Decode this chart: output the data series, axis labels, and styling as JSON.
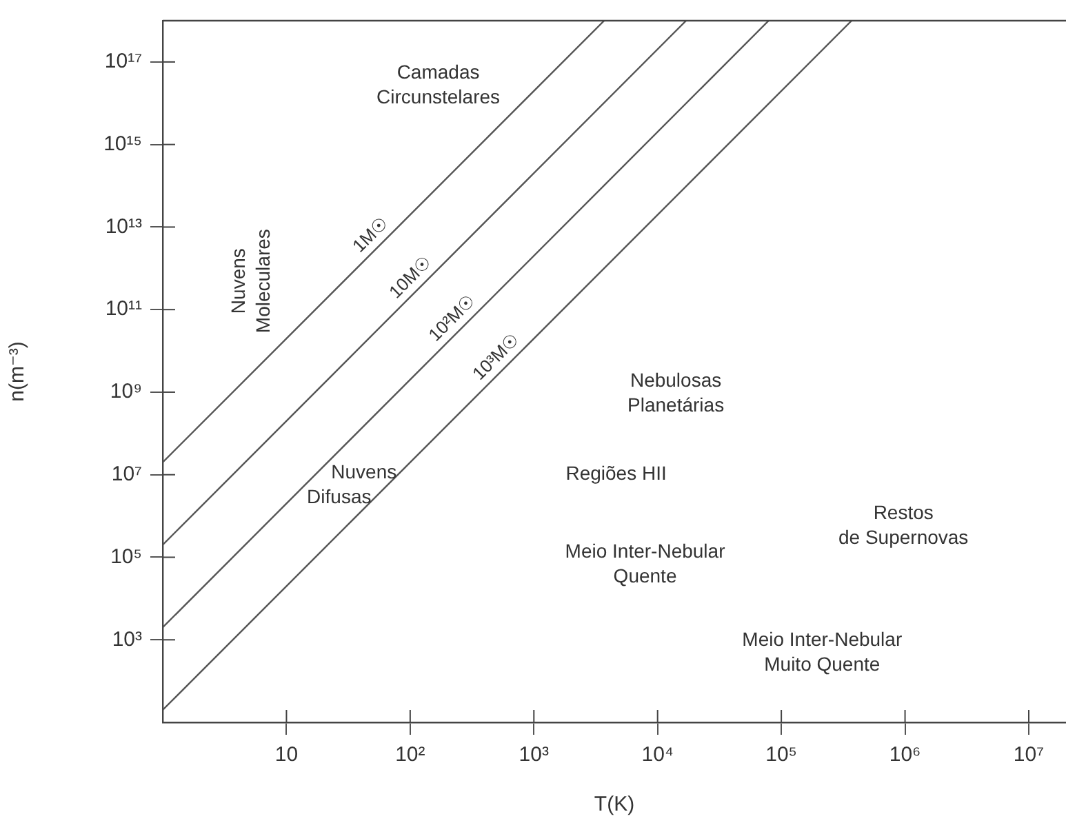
{
  "chart_data": {
    "type": "line",
    "xlabel": "T(K)",
    "ylabel": "n(m⁻³)",
    "log": "xy",
    "xlim": [
      1,
      20000000
    ],
    "ylim": [
      10,
      1e+18
    ],
    "xticks": [
      10,
      {
        "value": 100,
        "label": "10²"
      },
      {
        "value": 1000,
        "label": "10³"
      },
      {
        "value": 10000,
        "label": "10⁴"
      },
      {
        "value": 100000,
        "label": "10⁵"
      },
      {
        "value": 1000000,
        "label": "10⁶"
      },
      {
        "value": 10000000,
        "label": "10⁷"
      }
    ],
    "yticks": [
      {
        "value": 1000,
        "label": "10³"
      },
      {
        "value": 100000,
        "label": "10⁵"
      },
      {
        "value": 10000000,
        "label": "10⁷"
      },
      {
        "value": 1000000000,
        "label": "10⁹"
      },
      {
        "value": 100000000000,
        "label": "10¹¹"
      },
      {
        "value": 10000000000000,
        "label": "10¹³"
      },
      {
        "value": 1000000000000000,
        "label": "10¹⁵"
      },
      {
        "value": 100000000000000000,
        "label": "10¹⁷"
      }
    ],
    "grid": false,
    "legend": false,
    "marker": "none",
    "line_style": "solid",
    "series": [
      {
        "name": "1M☉",
        "color": "#555555",
        "x": [
          1,
          3700
        ],
        "values": [
          20000000,
          1e+18
        ]
      },
      {
        "name": "10M☉",
        "color": "#555555",
        "x": [
          1,
          17000
        ],
        "values": [
          200000,
          1e+18
        ]
      },
      {
        "name": "10²M☉",
        "color": "#555555",
        "x": [
          1,
          79000
        ],
        "values": [
          2000,
          1e+18
        ]
      },
      {
        "name": "10³M☉",
        "color": "#555555",
        "x": [
          1,
          370000
        ],
        "values": [
          20,
          1e+18
        ]
      }
    ],
    "annotations": [
      "Camadas\nCircunstelares",
      "Nuvens\nMoleculares",
      "Nebulosas\nPlanetárias",
      "Regiões HII",
      "Nuvens\nDifusas",
      "Restos\nde Supernovas",
      "Meio Inter-Nebular\nQuente",
      "Meio Inter-Nebular\nMuito Quente"
    ]
  }
}
